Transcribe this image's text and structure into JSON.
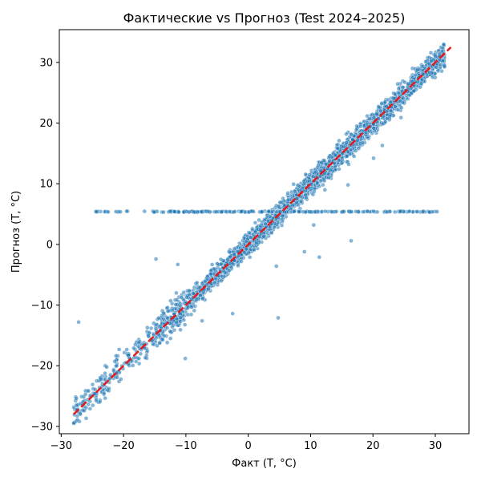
{
  "chart_data": {
    "type": "scatter",
    "title": "Фактические vs Прогноз (Test 2024–2025)",
    "xlabel": "Факт (T, °C)",
    "ylabel": "Прогноз (T, °C)",
    "xlim": [
      -30.3,
      35.4
    ],
    "ylim": [
      -31.2,
      35.4
    ],
    "xticks": [
      -30,
      -20,
      -10,
      0,
      10,
      20,
      30
    ],
    "yticks": [
      -30,
      -20,
      -10,
      0,
      10,
      20,
      30
    ],
    "xtick_labels": [
      "−30",
      "−20",
      "−10",
      "0",
      "10",
      "20",
      "30"
    ],
    "ytick_labels": [
      "−30",
      "−20",
      "−10",
      "0",
      "10",
      "20",
      "30"
    ],
    "grid": false,
    "legend": "none",
    "colors": {
      "points": "#1f77b4",
      "reference_line": "#e31a1c"
    },
    "reference_line": {
      "style": "dashed",
      "from": [
        -28,
        -28
      ],
      "to": [
        32.5,
        32.5
      ]
    },
    "main_band": {
      "x_range": [
        -28,
        31.5
      ],
      "noise_sd": 1.0
    },
    "horizontal_band": {
      "y": 5.4,
      "x_range": [
        -25.8,
        30.5
      ]
    },
    "outliers": [
      [
        -27.2,
        -12.8
      ],
      [
        -22.1,
        -21.5
      ],
      [
        -14.8,
        -2.4
      ],
      [
        -11.3,
        -3.3
      ],
      [
        -10.1,
        -18.8
      ],
      [
        -7.4,
        -12.6
      ],
      [
        -2.5,
        -11.4
      ],
      [
        4.8,
        -12.1
      ],
      [
        4.5,
        -3.6
      ],
      [
        9.0,
        -1.2
      ],
      [
        11.4,
        -2.1
      ],
      [
        16.5,
        0.6
      ],
      [
        10.5,
        3.2
      ],
      [
        16.0,
        9.8
      ],
      [
        12.3,
        9.0
      ],
      [
        16.1,
        13.2
      ],
      [
        20.1,
        14.2
      ],
      [
        21.5,
        16.3
      ],
      [
        24.5,
        20.9
      ]
    ]
  }
}
